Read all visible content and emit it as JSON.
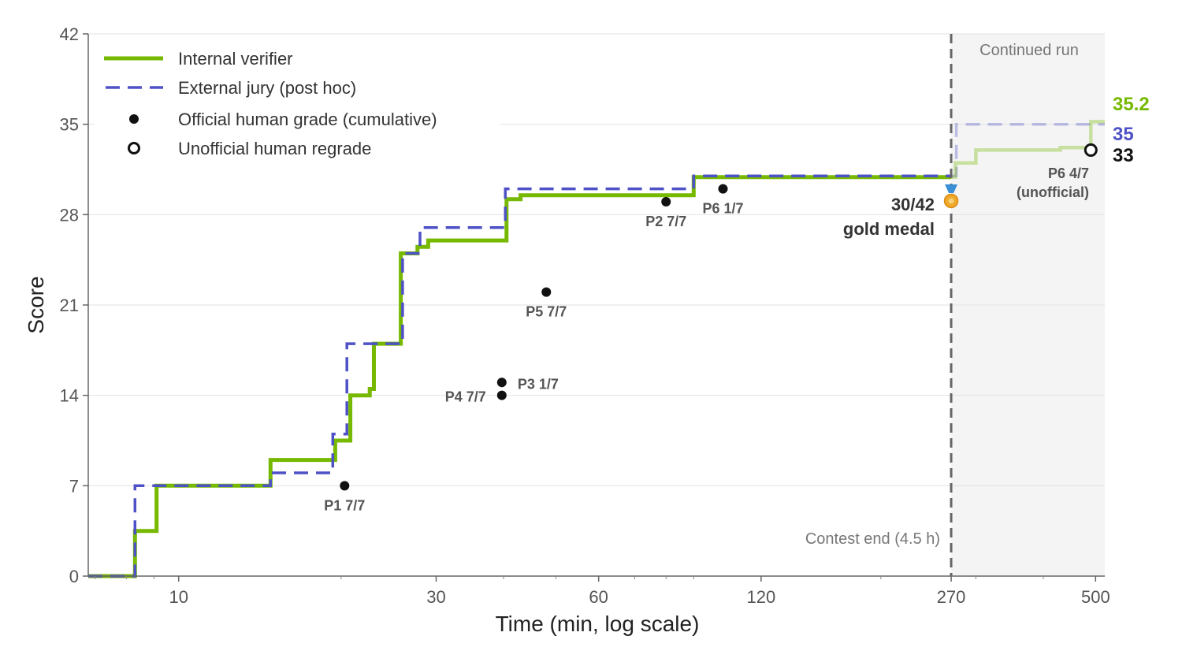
{
  "chart_data": {
    "type": "line",
    "xlabel": "Time (min, log scale)",
    "ylabel": "Score",
    "x_scale": "log",
    "xlim": [
      6.8,
      520
    ],
    "ylim": [
      0,
      42
    ],
    "x_ticks": [
      10,
      30,
      60,
      120,
      270,
      500
    ],
    "y_ticks": [
      0,
      7,
      14,
      21,
      28,
      35,
      42
    ],
    "grid": true,
    "legend_position": "top-left",
    "legend": [
      {
        "label": "Internal verifier",
        "style": "solid-line",
        "color": "#76b900"
      },
      {
        "label": "External jury (post hoc)",
        "style": "dashed-line",
        "color": "#4e52c6"
      },
      {
        "label": "Official human grade (cumulative)",
        "style": "filled-dot",
        "color": "#111111"
      },
      {
        "label": "Unofficial human regrade",
        "style": "open-dot",
        "color": "#111111"
      }
    ],
    "series": [
      {
        "name": "Internal verifier",
        "color": "#76b900",
        "steps_contest": [
          [
            6.8,
            0
          ],
          [
            8.3,
            0
          ],
          [
            8.3,
            3.5
          ],
          [
            9.1,
            3.5
          ],
          [
            9.1,
            7
          ],
          [
            14.8,
            7
          ],
          [
            14.8,
            9
          ],
          [
            19.5,
            9
          ],
          [
            19.5,
            10.5
          ],
          [
            20.8,
            10.5
          ],
          [
            20.8,
            14
          ],
          [
            22.6,
            14
          ],
          [
            22.6,
            14.5
          ],
          [
            23.0,
            14.5
          ],
          [
            23.0,
            18
          ],
          [
            25.8,
            18
          ],
          [
            25.8,
            25
          ],
          [
            27.7,
            25
          ],
          [
            27.7,
            25.5
          ],
          [
            29.0,
            25.5
          ],
          [
            29.0,
            26
          ],
          [
            40.5,
            26
          ],
          [
            40.5,
            29.2
          ],
          [
            43.0,
            29.2
          ],
          [
            43.0,
            29.5
          ],
          [
            90.0,
            29.5
          ],
          [
            90.0,
            30.9
          ],
          [
            270,
            30.9
          ]
        ],
        "steps_continued": [
          [
            270,
            30.9
          ],
          [
            275,
            30.9
          ],
          [
            275,
            32
          ],
          [
            300,
            32
          ],
          [
            300,
            33
          ],
          [
            430,
            33
          ],
          [
            430,
            33.2
          ],
          [
            490,
            33.2
          ],
          [
            490,
            35.2
          ],
          [
            520,
            35.2
          ]
        ],
        "final_label": "35.2"
      },
      {
        "name": "External jury (post hoc)",
        "color": "#4e52c6",
        "steps_contest": [
          [
            6.8,
            0
          ],
          [
            8.3,
            0
          ],
          [
            8.3,
            7
          ],
          [
            14.8,
            7
          ],
          [
            14.8,
            8
          ],
          [
            19.3,
            8
          ],
          [
            19.3,
            11
          ],
          [
            20.5,
            11
          ],
          [
            20.5,
            18
          ],
          [
            26.0,
            18
          ],
          [
            26.0,
            25
          ],
          [
            28.0,
            25
          ],
          [
            28.0,
            27
          ],
          [
            40.3,
            27
          ],
          [
            40.3,
            30
          ],
          [
            90.0,
            30
          ],
          [
            90.0,
            31
          ],
          [
            270,
            31
          ]
        ],
        "steps_continued": [
          [
            270,
            31
          ],
          [
            276,
            31
          ],
          [
            276,
            35
          ],
          [
            520,
            35
          ]
        ],
        "final_label": "35"
      }
    ],
    "official_points": [
      {
        "x": 20.3,
        "y": 7,
        "label": "P1 7/7"
      },
      {
        "x": 80.0,
        "y": 29,
        "label": "P2 7/7"
      },
      {
        "x": 39.7,
        "y": 15,
        "label": "P3 1/7"
      },
      {
        "x": 39.7,
        "y": 14,
        "label": "P4 7/7"
      },
      {
        "x": 48.0,
        "y": 22,
        "label": "P5 7/7"
      },
      {
        "x": 102.0,
        "y": 30,
        "label": "P6 1/7"
      }
    ],
    "unofficial_point": {
      "x": 490,
      "y": 33,
      "label_line1": "P6 4/7",
      "label_line2": "(unofficial)",
      "final_label": "33"
    },
    "contest_end": {
      "x": 270,
      "label": "Contest end (4.5 h)"
    },
    "continued_region": {
      "from": 270,
      "label": "Continued run"
    },
    "medal": {
      "x": 270,
      "y": 29,
      "label_line1": "30/42",
      "label_line2": "gold medal"
    }
  }
}
